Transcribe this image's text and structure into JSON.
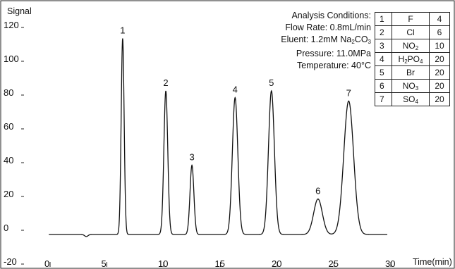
{
  "chart_data": {
    "type": "line",
    "ylabel": "Signal",
    "xlabel": "Time(min)",
    "ylim": [
      -20,
      125
    ],
    "xlim": [
      0,
      30
    ],
    "yticks": [
      "-20",
      "0",
      "20",
      "40",
      "60",
      "80",
      "100",
      "120"
    ],
    "ytick_values": [
      -20,
      0,
      20,
      40,
      60,
      80,
      100,
      120
    ],
    "xticks": [
      "0",
      "5",
      "10",
      "15",
      "20",
      "25",
      "30"
    ],
    "xtick_values": [
      0,
      5,
      10,
      15,
      20,
      25,
      30
    ],
    "baseline": -2.5,
    "series": [
      {
        "peaks": [
          {
            "label": "1",
            "t": 6.7,
            "height": 116,
            "width": 0.13
          },
          {
            "label": "2",
            "t": 10.5,
            "height": 85,
            "width": 0.17
          },
          {
            "label": "3",
            "t": 12.8,
            "height": 41,
            "width": 0.17
          },
          {
            "label": "4",
            "t": 16.6,
            "height": 81,
            "width": 0.24
          },
          {
            "label": "5",
            "t": 19.8,
            "height": 85,
            "width": 0.26
          },
          {
            "label": "6",
            "t": 23.9,
            "height": 21,
            "width": 0.38
          },
          {
            "label": "7",
            "t": 26.6,
            "height": 79,
            "width": 0.43
          }
        ]
      }
    ],
    "dip": {
      "t": 3.5,
      "depth": 1.2
    }
  },
  "conditions": {
    "title": "Analysis Conditions:",
    "flow": "Flow Rate: 0.8mL/min",
    "eluent_prefix": "Eluent: 1.2mM Na",
    "eluent_sub1": "2",
    "eluent_mid": "CO",
    "eluent_sub2": "3",
    "pressure": "Pressure: 11.0MPa",
    "temperature": "Temperature: 40°C"
  },
  "ion_table": [
    {
      "no": "1",
      "ion": "F",
      "sub": "",
      "conc": "4"
    },
    {
      "no": "2",
      "ion": "Cl",
      "sub": "",
      "conc": "6"
    },
    {
      "no": "3",
      "ion": "NO",
      "sub": "2",
      "conc": "10"
    },
    {
      "no": "4",
      "ion": "H",
      "sub": "2",
      "ion_tail": "PO",
      "sub2": "4",
      "conc": "20"
    },
    {
      "no": "5",
      "ion": "Br",
      "sub": "",
      "conc": "20"
    },
    {
      "no": "6",
      "ion": "NO",
      "sub": "3",
      "conc": "20"
    },
    {
      "no": "7",
      "ion": "SO",
      "sub": "4",
      "conc": "20"
    }
  ],
  "colors": {
    "trace": "#111111",
    "axis": "#222222"
  }
}
